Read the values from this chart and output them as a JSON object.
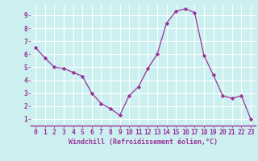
{
  "x": [
    0,
    1,
    2,
    3,
    4,
    5,
    6,
    7,
    8,
    9,
    10,
    11,
    12,
    13,
    14,
    15,
    16,
    17,
    18,
    19,
    20,
    21,
    22,
    23
  ],
  "y": [
    6.5,
    5.7,
    5.0,
    4.9,
    4.6,
    4.3,
    3.0,
    2.2,
    1.8,
    1.3,
    2.8,
    3.5,
    4.9,
    6.0,
    8.4,
    9.3,
    9.5,
    9.2,
    5.9,
    4.4,
    2.8,
    2.6,
    2.8,
    1.0
  ],
  "xlabel": "Windchill (Refroidissement éolien,°C)",
  "xlim": [
    -0.5,
    23.5
  ],
  "ylim": [
    0.5,
    9.8
  ],
  "yticks": [
    1,
    2,
    3,
    4,
    5,
    6,
    7,
    8,
    9
  ],
  "xticks": [
    0,
    1,
    2,
    3,
    4,
    5,
    6,
    7,
    8,
    9,
    10,
    11,
    12,
    13,
    14,
    15,
    16,
    17,
    18,
    19,
    20,
    21,
    22,
    23
  ],
  "line_color": "#993399",
  "marker_color": "#993399",
  "bg_color": "#ccf0f0",
  "grid_color": "#ffffff",
  "xlabel_color": "#993399",
  "tick_color": "#993399",
  "label_fontsize": 6.0,
  "tick_fontsize": 5.8
}
